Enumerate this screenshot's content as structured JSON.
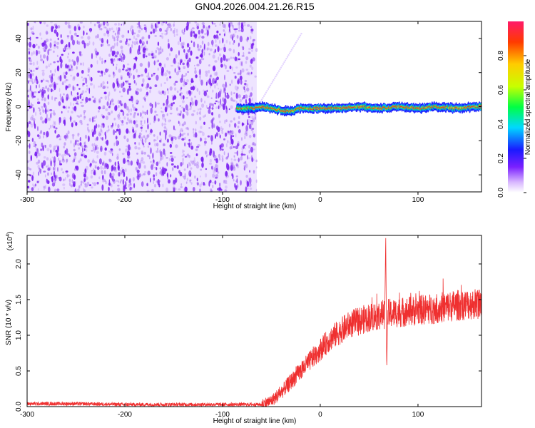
{
  "title": "GN04.2026.004.21.26.R15",
  "colors": {
    "spectrogram_noise": "#9a5cf0",
    "ridge_low": "#1a1aff",
    "ridge_high": "#ff1a1a",
    "snr_line": "#ef3030"
  },
  "chart_data": [
    {
      "type": "heatmap",
      "xlabel": "Height of straight line (km)",
      "ylabel": "Frequency (Hz)",
      "xlim": [
        -300,
        165
      ],
      "ylim": [
        -50,
        50
      ],
      "x_ticks": [
        -300,
        -200,
        -100,
        0,
        100
      ],
      "y_ticks": [
        -40,
        -20,
        0,
        20,
        40
      ],
      "noise_region_x": [
        -300,
        -65
      ],
      "ridge": {
        "x_start": -85,
        "x_end": 165,
        "frequency": [
          [
            -85,
            -1
          ],
          [
            -70,
            -1
          ],
          [
            -60,
            0
          ],
          [
            -50,
            -1
          ],
          [
            -40,
            -2
          ],
          [
            -30,
            -3
          ],
          [
            -20,
            -1
          ],
          [
            0,
            -1
          ],
          [
            20,
            -1
          ],
          [
            40,
            0
          ],
          [
            60,
            -1
          ],
          [
            80,
            0
          ],
          [
            100,
            -1
          ],
          [
            120,
            0
          ],
          [
            140,
            -1
          ],
          [
            160,
            0
          ]
        ]
      },
      "colorbar": {
        "label": "Normalized spectral amplitude",
        "range": [
          0,
          1
        ],
        "ticks": [
          "0.0",
          "0.2",
          "0.4",
          "0.6",
          "0.8"
        ]
      }
    },
    {
      "type": "line",
      "xlabel": "Height of straight line (km)",
      "ylabel": "SNR (10 * v/v)",
      "y_multiplier": "(x10",
      "y_multiplier_exp": "4",
      "y_multiplier_close": ")",
      "xlim": [
        -300,
        165
      ],
      "ylim": [
        0,
        2.4
      ],
      "x_ticks": [
        -300,
        -200,
        -100,
        0,
        100
      ],
      "y_ticks": [
        "0.0",
        "0.5",
        "1.0",
        "1.5",
        "2.0"
      ],
      "series": [
        {
          "points": [
            [
              -300,
              0.04
            ],
            [
              -250,
              0.04
            ],
            [
              -200,
              0.03
            ],
            [
              -150,
              0.03
            ],
            [
              -100,
              0.03
            ],
            [
              -60,
              0.03
            ],
            [
              -50,
              0.08
            ],
            [
              -40,
              0.2
            ],
            [
              -30,
              0.35
            ],
            [
              -20,
              0.5
            ],
            [
              -10,
              0.65
            ],
            [
              0,
              0.8
            ],
            [
              10,
              0.95
            ],
            [
              20,
              1.05
            ],
            [
              30,
              1.15
            ],
            [
              40,
              1.2
            ],
            [
              50,
              1.25
            ],
            [
              60,
              1.28
            ],
            [
              66,
              1.3
            ],
            [
              67,
              2.4
            ],
            [
              68,
              0.5
            ],
            [
              69,
              1.3
            ],
            [
              80,
              1.32
            ],
            [
              100,
              1.35
            ],
            [
              120,
              1.38
            ],
            [
              140,
              1.42
            ],
            [
              165,
              1.45
            ]
          ]
        }
      ]
    }
  ]
}
